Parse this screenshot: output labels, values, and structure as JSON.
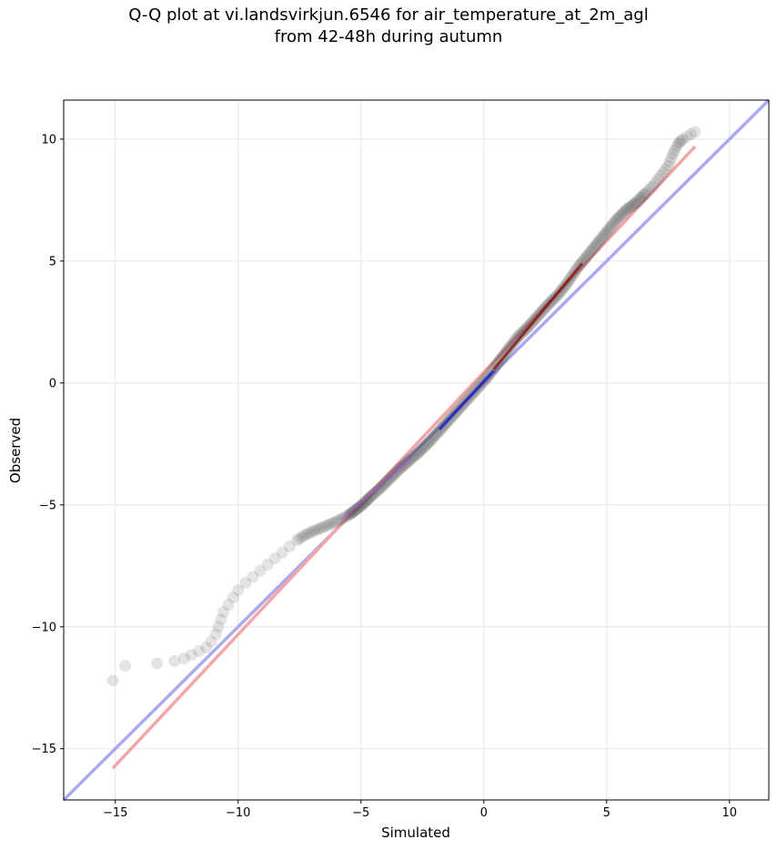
{
  "chart_data": {
    "type": "scatter",
    "title_lines": [
      "Q-Q plot at vi.landsvirkjun.6546 for air_temperature_at_2m_agl",
      "from 42-48h during autumn"
    ],
    "xlabel": "Simulated",
    "ylabel": "Observed",
    "xlim": [
      -17.1,
      11.6
    ],
    "ylim": [
      -17.1,
      11.6
    ],
    "xticks": [
      -15,
      -10,
      -5,
      0,
      5,
      10
    ],
    "yticks": [
      -15,
      -10,
      -5,
      0,
      5,
      10
    ],
    "xtick_labels": [
      "−15",
      "−10",
      "−5",
      "0",
      "5",
      "10"
    ],
    "ytick_labels": [
      "−15",
      "−10",
      "−5",
      "0",
      "5",
      "10"
    ],
    "grid": true,
    "colors": {
      "points": "#4d4d4d",
      "identity_line": "#aaaaee",
      "fit_line": "#f4a6a6",
      "central_low": "#1a1acc",
      "central_high": "#880000"
    },
    "series": [
      {
        "points": [
          [
            -15.1,
            -12.2
          ],
          [
            -14.6,
            -11.6
          ],
          [
            -13.3,
            -11.5
          ],
          [
            -12.6,
            -11.4
          ],
          [
            -12.2,
            -11.3
          ],
          [
            -11.9,
            -11.15
          ],
          [
            -11.6,
            -11.0
          ],
          [
            -11.3,
            -10.85
          ],
          [
            -11.1,
            -10.6
          ],
          [
            -10.9,
            -10.3
          ],
          [
            -10.8,
            -10.0
          ],
          [
            -10.7,
            -9.7
          ],
          [
            -10.6,
            -9.4
          ],
          [
            -10.4,
            -9.1
          ],
          [
            -10.2,
            -8.8
          ],
          [
            -10.0,
            -8.5
          ],
          [
            -9.7,
            -8.2
          ],
          [
            -9.4,
            -7.95
          ],
          [
            -9.1,
            -7.7
          ],
          [
            -8.8,
            -7.45
          ],
          [
            -8.5,
            -7.2
          ],
          [
            -8.2,
            -6.95
          ],
          [
            -7.9,
            -6.7
          ],
          [
            -7.6,
            -6.45
          ],
          [
            -7.3,
            -6.25
          ],
          [
            -7.0,
            -6.1
          ],
          [
            -6.7,
            -5.98
          ],
          [
            -6.4,
            -5.85
          ],
          [
            -6.1,
            -5.72
          ],
          [
            -5.8,
            -5.58
          ],
          [
            -5.5,
            -5.42
          ],
          [
            -5.2,
            -5.2
          ],
          [
            -4.9,
            -4.95
          ],
          [
            -4.6,
            -4.65
          ],
          [
            -4.2,
            -4.3
          ],
          [
            -3.8,
            -3.9
          ],
          [
            -3.4,
            -3.5
          ],
          [
            -3.0,
            -3.15
          ],
          [
            -2.6,
            -2.8
          ],
          [
            -2.2,
            -2.4
          ],
          [
            -1.8,
            -1.95
          ],
          [
            -1.4,
            -1.5
          ],
          [
            -1.0,
            -1.05
          ],
          [
            -0.6,
            -0.6
          ],
          [
            -0.2,
            -0.15
          ],
          [
            0.2,
            0.3
          ],
          [
            0.6,
            0.85
          ],
          [
            1.0,
            1.4
          ],
          [
            1.4,
            1.9
          ],
          [
            1.8,
            2.3
          ],
          [
            2.2,
            2.75
          ],
          [
            2.6,
            3.2
          ],
          [
            3.0,
            3.6
          ],
          [
            3.4,
            4.1
          ],
          [
            3.8,
            4.7
          ],
          [
            4.2,
            5.2
          ],
          [
            4.6,
            5.7
          ],
          [
            5.0,
            6.2
          ],
          [
            5.4,
            6.7
          ],
          [
            5.8,
            7.1
          ],
          [
            6.2,
            7.4
          ],
          [
            6.6,
            7.8
          ],
          [
            6.9,
            8.1
          ],
          [
            7.2,
            8.5
          ],
          [
            7.5,
            8.9
          ],
          [
            7.7,
            9.4
          ],
          [
            7.9,
            9.8
          ],
          [
            8.1,
            10.0
          ],
          [
            8.6,
            10.3
          ]
        ]
      }
    ],
    "lines": [
      {
        "from": [
          -17.1,
          -17.1
        ],
        "to": [
          11.6,
          11.6
        ]
      },
      {
        "from": [
          -15.1,
          -15.8
        ],
        "to": [
          8.6,
          9.7
        ]
      }
    ]
  }
}
